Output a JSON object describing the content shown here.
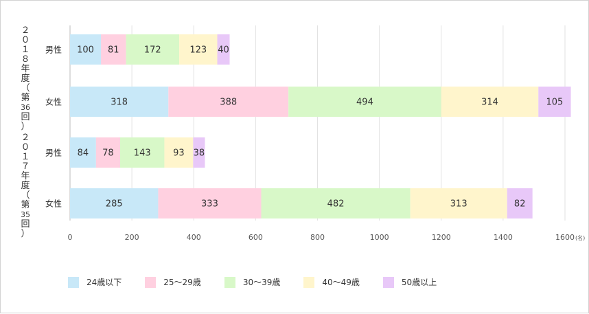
{
  "chart_data": {
    "type": "bar",
    "orientation": "horizontal",
    "stacked": true,
    "unit": "(名)",
    "xlim": [
      0,
      1600
    ],
    "xticks": [
      0,
      200,
      400,
      600,
      800,
      1000,
      1200,
      1400,
      1600
    ],
    "grid": true,
    "legend_position": "bottom",
    "groups": [
      {
        "label": "２０１８年度（第36回）",
        "rows": [
          "男性",
          "女性"
        ]
      },
      {
        "label": "２０１７年度（第35回）",
        "rows": [
          "男性",
          "女性"
        ]
      }
    ],
    "categories": [
      "男性",
      "女性",
      "男性",
      "女性"
    ],
    "series": [
      {
        "name": "24歳以下",
        "color": "#c8e8f8",
        "values": [
          100,
          318,
          84,
          285
        ]
      },
      {
        "name": "25〜29歳",
        "color": "#ffd0e0",
        "values": [
          81,
          388,
          78,
          333
        ]
      },
      {
        "name": "30〜39歳",
        "color": "#d8f8c8",
        "values": [
          172,
          494,
          143,
          482
        ]
      },
      {
        "name": "40〜49歳",
        "color": "#fff5cc",
        "values": [
          123,
          314,
          93,
          313
        ]
      },
      {
        "name": "50歳以上",
        "color": "#e8c8f8",
        "values": [
          40,
          105,
          38,
          82
        ]
      }
    ]
  },
  "year_labels": [
    {
      "chars": [
        "２",
        "０",
        "１",
        "８",
        "年",
        "度",
        "（",
        "第",
        "36",
        "回",
        "）"
      ]
    },
    {
      "chars": [
        "２",
        "０",
        "１",
        "７",
        "年",
        "度",
        "（",
        "第",
        "35",
        "回",
        "）"
      ]
    }
  ]
}
